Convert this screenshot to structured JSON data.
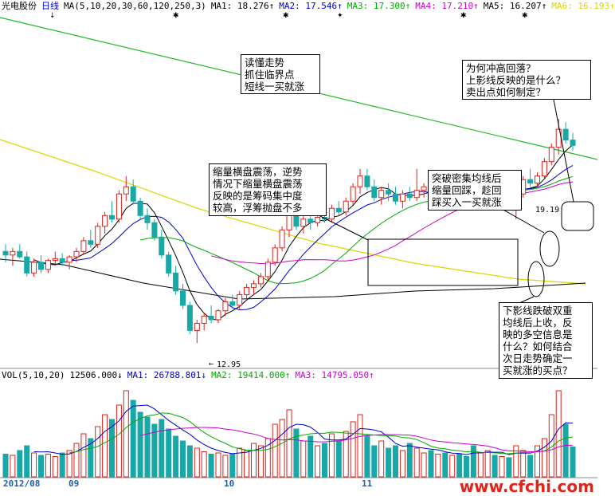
{
  "price_header": {
    "stock_name": "光电股份",
    "period": "日线",
    "ma_params": "MA(5,10,20,30,60,120,250,3)",
    "items": [
      {
        "label": "MA1: 18.276↑",
        "color": "#000000"
      },
      {
        "label": "MA2: 17.546↑",
        "color": "#0000cc"
      },
      {
        "label": "MA3: 17.300↑",
        "color": "#00aa00"
      },
      {
        "label": "MA4: 17.210↑",
        "color": "#cc00cc"
      },
      {
        "label": "MA5: 16.207↑",
        "color": "#000000"
      },
      {
        "label": "MA6: 16.193↑",
        "color": "#d8d800"
      }
    ]
  },
  "volume_header": {
    "params": "VOL(5,10,20)",
    "items": [
      {
        "label": "12506.000↓",
        "color": "#000000"
      },
      {
        "label": "MA1: 26788.801↓",
        "color": "#0000cc"
      },
      {
        "label": "MA2: 19414.000↑",
        "color": "#00aa00"
      },
      {
        "label": "MA3: 14795.050↑",
        "color": "#cc00cc"
      }
    ]
  },
  "annotations": [
    {
      "id": "note-1",
      "text": "读懂走势\n抓住临界点\n短线一买就涨"
    },
    {
      "id": "note-2",
      "text": "为何冲高回落？\n上影线反映的是什么？\n卖出点如何制定？"
    },
    {
      "id": "note-3",
      "text": "缩量横盘震荡，逆势\n情况下缩量横盘震荡\n反映的是筹码集中度\n较高，浮筹抛盘不多"
    },
    {
      "id": "note-4",
      "text": "突破密集均线后\n缩量回踩，趁回\n踩买入一买就涨"
    },
    {
      "id": "note-5",
      "text": "下影线跌破双重\n均线后上收，反\n映的多空信息是\n什么？如何结合\n次日走势确定一\n买就涨的买点？"
    }
  ],
  "price_labels": {
    "high": "19.19",
    "low": "12.95"
  },
  "x_axis": {
    "labels": [
      "2012/08",
      "09",
      "10",
      "11"
    ]
  },
  "watermark": "www.cfchi.com",
  "colors": {
    "up": "#e0201a",
    "down": "#18a8a8",
    "background": "#ffffff"
  },
  "chart_data": {
    "type": "candlestick",
    "title": "光电股份 日线",
    "price_range": [
      12.95,
      19.19
    ],
    "x_labels": [
      "2012/08",
      "09",
      "10",
      "11"
    ],
    "candles": [
      {
        "o": 15.5,
        "h": 15.7,
        "l": 15.2,
        "c": 15.4
      },
      {
        "o": 15.4,
        "h": 15.6,
        "l": 15.1,
        "c": 15.5
      },
      {
        "o": 15.5,
        "h": 15.7,
        "l": 15.3,
        "c": 15.35
      },
      {
        "o": 15.35,
        "h": 15.5,
        "l": 14.8,
        "c": 14.9
      },
      {
        "o": 14.9,
        "h": 15.3,
        "l": 14.8,
        "c": 15.2
      },
      {
        "o": 15.2,
        "h": 15.4,
        "l": 14.9,
        "c": 15.0
      },
      {
        "o": 15.0,
        "h": 15.3,
        "l": 14.9,
        "c": 15.25
      },
      {
        "o": 15.25,
        "h": 15.5,
        "l": 15.1,
        "c": 15.3
      },
      {
        "o": 15.3,
        "h": 15.45,
        "l": 15.1,
        "c": 15.2
      },
      {
        "o": 15.2,
        "h": 15.4,
        "l": 15.0,
        "c": 15.35
      },
      {
        "o": 15.35,
        "h": 15.6,
        "l": 15.2,
        "c": 15.5
      },
      {
        "o": 15.5,
        "h": 15.9,
        "l": 15.4,
        "c": 15.8
      },
      {
        "o": 15.8,
        "h": 16.1,
        "l": 15.6,
        "c": 15.7
      },
      {
        "o": 15.7,
        "h": 16.3,
        "l": 15.6,
        "c": 16.2
      },
      {
        "o": 16.2,
        "h": 16.6,
        "l": 16.0,
        "c": 16.5
      },
      {
        "o": 16.5,
        "h": 16.9,
        "l": 16.3,
        "c": 16.4
      },
      {
        "o": 16.4,
        "h": 17.2,
        "l": 16.3,
        "c": 17.1
      },
      {
        "o": 17.1,
        "h": 17.6,
        "l": 16.9,
        "c": 17.3
      },
      {
        "o": 17.3,
        "h": 17.5,
        "l": 16.8,
        "c": 16.9
      },
      {
        "o": 16.9,
        "h": 17.0,
        "l": 16.4,
        "c": 16.5
      },
      {
        "o": 16.5,
        "h": 16.7,
        "l": 16.1,
        "c": 16.3
      },
      {
        "o": 16.3,
        "h": 16.4,
        "l": 15.8,
        "c": 15.9
      },
      {
        "o": 15.9,
        "h": 16.1,
        "l": 15.3,
        "c": 15.4
      },
      {
        "o": 15.4,
        "h": 15.5,
        "l": 14.8,
        "c": 14.9
      },
      {
        "o": 14.9,
        "h": 15.1,
        "l": 14.3,
        "c": 14.4
      },
      {
        "o": 14.4,
        "h": 14.6,
        "l": 13.9,
        "c": 14.0
      },
      {
        "o": 14.0,
        "h": 14.1,
        "l": 13.2,
        "c": 13.3
      },
      {
        "o": 13.3,
        "h": 13.6,
        "l": 12.95,
        "c": 13.5
      },
      {
        "o": 13.5,
        "h": 13.8,
        "l": 13.3,
        "c": 13.7
      },
      {
        "o": 13.7,
        "h": 14.0,
        "l": 13.5,
        "c": 13.6
      },
      {
        "o": 13.6,
        "h": 13.9,
        "l": 13.5,
        "c": 13.85
      },
      {
        "o": 13.85,
        "h": 14.2,
        "l": 13.7,
        "c": 14.1
      },
      {
        "o": 14.1,
        "h": 14.3,
        "l": 13.9,
        "c": 14.0
      },
      {
        "o": 14.0,
        "h": 14.4,
        "l": 13.9,
        "c": 14.3
      },
      {
        "o": 14.3,
        "h": 14.6,
        "l": 14.2,
        "c": 14.5
      },
      {
        "o": 14.5,
        "h": 14.7,
        "l": 14.3,
        "c": 14.6
      },
      {
        "o": 14.6,
        "h": 14.9,
        "l": 14.5,
        "c": 14.8
      },
      {
        "o": 14.8,
        "h": 15.3,
        "l": 14.7,
        "c": 15.2
      },
      {
        "o": 15.2,
        "h": 15.7,
        "l": 15.1,
        "c": 15.6
      },
      {
        "o": 15.6,
        "h": 16.2,
        "l": 15.5,
        "c": 16.1
      },
      {
        "o": 16.1,
        "h": 16.6,
        "l": 15.9,
        "c": 16.5
      },
      {
        "o": 16.5,
        "h": 16.7,
        "l": 16.1,
        "c": 16.2
      },
      {
        "o": 16.2,
        "h": 16.5,
        "l": 16.0,
        "c": 16.4
      },
      {
        "o": 16.4,
        "h": 16.6,
        "l": 16.1,
        "c": 16.3
      },
      {
        "o": 16.3,
        "h": 16.5,
        "l": 16.2,
        "c": 16.45
      },
      {
        "o": 16.45,
        "h": 16.6,
        "l": 16.3,
        "c": 16.4
      },
      {
        "o": 16.4,
        "h": 16.8,
        "l": 16.3,
        "c": 16.7
      },
      {
        "o": 16.7,
        "h": 16.9,
        "l": 16.5,
        "c": 16.6
      },
      {
        "o": 16.6,
        "h": 17.0,
        "l": 16.5,
        "c": 16.9
      },
      {
        "o": 16.9,
        "h": 17.4,
        "l": 16.8,
        "c": 17.3
      },
      {
        "o": 17.3,
        "h": 17.8,
        "l": 17.1,
        "c": 17.6
      },
      {
        "o": 17.6,
        "h": 17.8,
        "l": 17.2,
        "c": 17.3
      },
      {
        "o": 17.3,
        "h": 17.5,
        "l": 16.9,
        "c": 17.0
      },
      {
        "o": 17.0,
        "h": 17.3,
        "l": 16.8,
        "c": 17.2
      },
      {
        "o": 17.2,
        "h": 17.4,
        "l": 16.9,
        "c": 17.1
      },
      {
        "o": 17.1,
        "h": 17.3,
        "l": 16.8,
        "c": 16.9
      },
      {
        "o": 16.9,
        "h": 17.2,
        "l": 16.7,
        "c": 17.1
      },
      {
        "o": 17.1,
        "h": 17.3,
        "l": 16.9,
        "c": 17.0
      },
      {
        "o": 17.0,
        "h": 17.8,
        "l": 16.9,
        "c": 17.2
      },
      {
        "o": 17.2,
        "h": 17.4,
        "l": 17.0,
        "c": 17.3
      },
      {
        "o": 17.3,
        "h": 17.5,
        "l": 17.1,
        "c": 17.2
      },
      {
        "o": 17.2,
        "h": 17.4,
        "l": 17.0,
        "c": 17.35
      },
      {
        "o": 17.35,
        "h": 17.5,
        "l": 17.2,
        "c": 17.3
      },
      {
        "o": 17.3,
        "h": 17.5,
        "l": 17.1,
        "c": 17.4
      },
      {
        "o": 17.4,
        "h": 17.6,
        "l": 17.2,
        "c": 17.3
      },
      {
        "o": 17.3,
        "h": 17.5,
        "l": 17.1,
        "c": 17.2
      },
      {
        "o": 17.2,
        "h": 17.7,
        "l": 17.0,
        "c": 17.1
      },
      {
        "o": 17.1,
        "h": 17.3,
        "l": 16.9,
        "c": 17.25
      },
      {
        "o": 17.25,
        "h": 17.6,
        "l": 17.1,
        "c": 17.4
      },
      {
        "o": 17.4,
        "h": 17.5,
        "l": 17.1,
        "c": 17.2
      },
      {
        "o": 17.2,
        "h": 17.4,
        "l": 17.0,
        "c": 17.3
      },
      {
        "o": 17.3,
        "h": 17.4,
        "l": 16.9,
        "c": 17.0
      },
      {
        "o": 17.0,
        "h": 17.2,
        "l": 16.4,
        "c": 17.1
      },
      {
        "o": 17.1,
        "h": 17.6,
        "l": 17.0,
        "c": 17.5
      },
      {
        "o": 17.5,
        "h": 17.8,
        "l": 17.3,
        "c": 17.4
      },
      {
        "o": 17.4,
        "h": 17.7,
        "l": 17.3,
        "c": 17.6
      },
      {
        "o": 17.6,
        "h": 18.1,
        "l": 17.5,
        "c": 18.0
      },
      {
        "o": 18.0,
        "h": 18.5,
        "l": 17.9,
        "c": 18.4
      },
      {
        "o": 18.4,
        "h": 19.19,
        "l": 18.2,
        "c": 18.9
      },
      {
        "o": 18.9,
        "h": 19.1,
        "l": 18.5,
        "c": 18.6
      },
      {
        "o": 18.6,
        "h": 18.8,
        "l": 18.3,
        "c": 18.45
      }
    ],
    "volume": [
      9500,
      9000,
      11000,
      13000,
      10000,
      9000,
      9500,
      8500,
      10000,
      11000,
      14000,
      18000,
      16000,
      21000,
      26000,
      24000,
      30000,
      36000,
      32000,
      27000,
      25000,
      22000,
      24000,
      20000,
      17000,
      15000,
      13000,
      12000,
      10500,
      9500,
      10000,
      9000,
      9500,
      12000,
      11000,
      14000,
      13000,
      16000,
      22000,
      24000,
      28000,
      20000,
      15000,
      17000,
      13000,
      14000,
      18000,
      15000,
      19000,
      23000,
      26000,
      17000,
      13000,
      15000,
      12000,
      13000,
      11000,
      14000,
      12000,
      10000,
      11000,
      9500,
      10000,
      9000,
      9500,
      8500,
      13000,
      10000,
      11000,
      9000,
      8500,
      8000,
      13000,
      11000,
      9000,
      13000,
      16000,
      26000,
      36000,
      22000,
      12506
    ],
    "ma_price_now": {
      "MA1": 18.276,
      "MA2": 17.546,
      "MA3": 17.3,
      "MA4": 17.21,
      "MA5": 16.207,
      "MA6": 16.193
    },
    "ma_volume_now": {
      "VOL": 12506.0,
      "MA1": 26788.801,
      "MA2": 19414.0,
      "MA3": 14795.05
    }
  }
}
